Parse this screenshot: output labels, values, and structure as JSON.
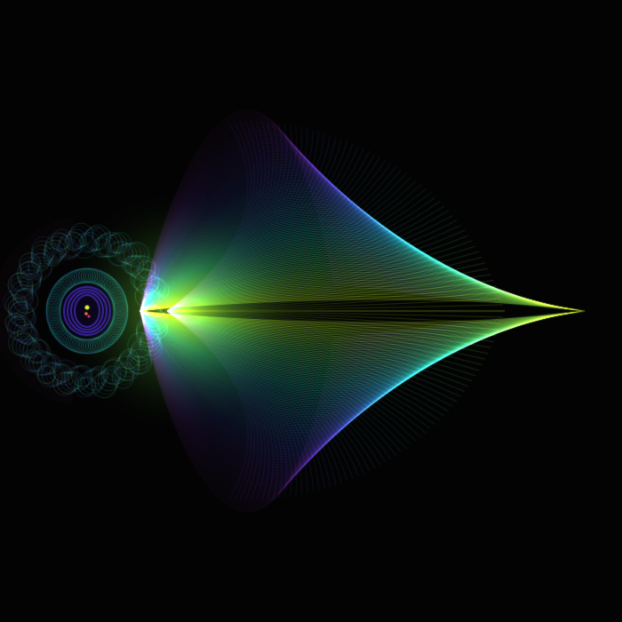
{
  "image": {
    "subject": "fractal-flame-curves",
    "background_color": "#030303",
    "palette": [
      "#2a0a3a",
      "#3b1a7a",
      "#283a9a",
      "#1f6f9a",
      "#19a08a",
      "#4fc25a",
      "#b8e81a"
    ],
    "core_colors": [
      "#ff7a1a",
      "#ff2a5a",
      "#d8f01a"
    ]
  }
}
